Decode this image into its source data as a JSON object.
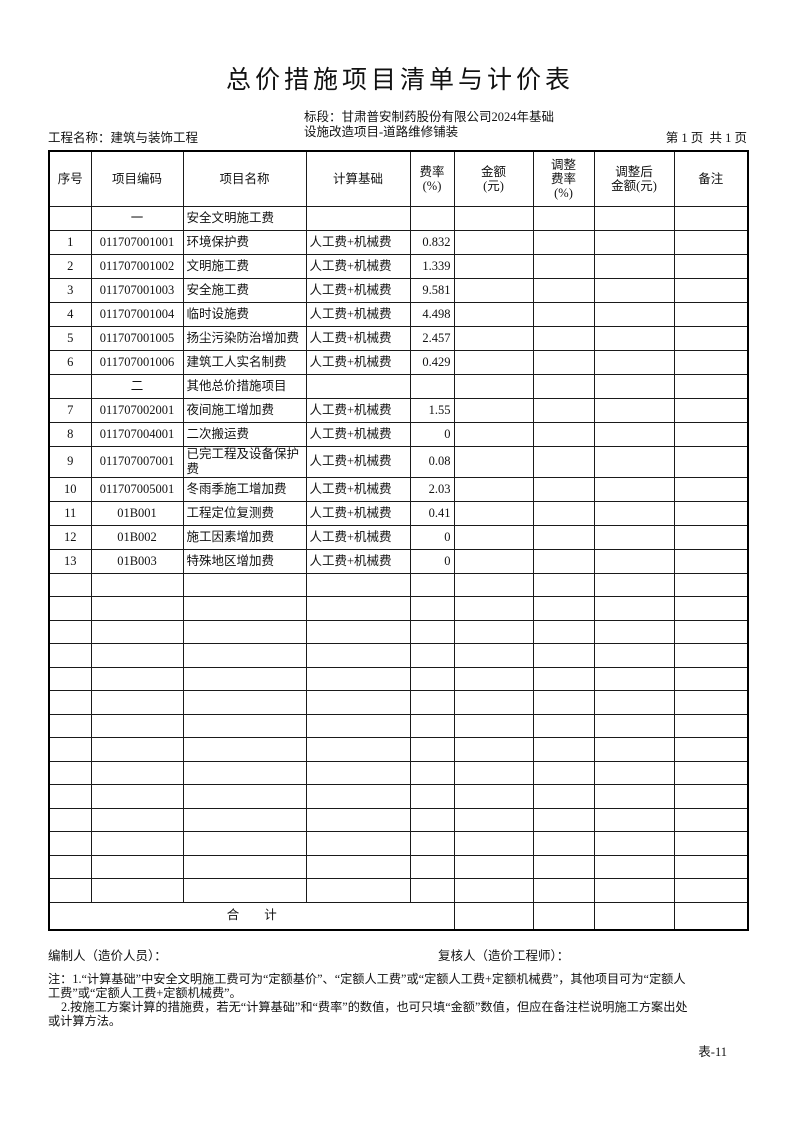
{
  "page": {
    "title": "总价措施项目清单与计价表",
    "project_label": "工程名称：建筑与装饰工程",
    "section_label_line1": "标段：甘肃普安制药股份有限公司2024年基础",
    "section_label_line2": "设施改造项目-道路维修铺装",
    "page_info": "第 1 页  共 1 页",
    "form_code": "表-11"
  },
  "table": {
    "headers": [
      "序号",
      "项目编码",
      "项目名称",
      "计算基础",
      "费率\n(%)",
      "金额\n(元)",
      "调整\n费率\n(%)",
      "调整后\n金额(元)",
      "备注"
    ],
    "rows": [
      {
        "section": true,
        "code": "一",
        "name": "安全文明施工费"
      },
      {
        "no": "1",
        "code": "011707001001",
        "name": "环境保护费",
        "basis": "人工费+机械费",
        "rate": "0.832"
      },
      {
        "no": "2",
        "code": "011707001002",
        "name": "文明施工费",
        "basis": "人工费+机械费",
        "rate": "1.339"
      },
      {
        "no": "3",
        "code": "011707001003",
        "name": "安全施工费",
        "basis": "人工费+机械费",
        "rate": "9.581"
      },
      {
        "no": "4",
        "code": "011707001004",
        "name": "临时设施费",
        "basis": "人工费+机械费",
        "rate": "4.498"
      },
      {
        "no": "5",
        "code": "011707001005",
        "name": "扬尘污染防治增加费",
        "basis": "人工费+机械费",
        "rate": "2.457"
      },
      {
        "no": "6",
        "code": "011707001006",
        "name": "建筑工人实名制费",
        "basis": "人工费+机械费",
        "rate": "0.429"
      },
      {
        "section": true,
        "code": "二",
        "name": "其他总价措施项目"
      },
      {
        "no": "7",
        "code": "011707002001",
        "name": "夜间施工增加费",
        "basis": "人工费+机械费",
        "rate": "1.55"
      },
      {
        "no": "8",
        "code": "011707004001",
        "name": "二次搬运费",
        "basis": "人工费+机械费",
        "rate": "0"
      },
      {
        "no": "9",
        "code": "011707007001",
        "name": "已完工程及设备保护费",
        "basis": "人工费+机械费",
        "rate": "0.08"
      },
      {
        "no": "10",
        "code": "011707005001",
        "name": "冬雨季施工增加费",
        "basis": "人工费+机械费",
        "rate": "2.03"
      },
      {
        "no": "11",
        "code": "01B001",
        "name": "工程定位复测费",
        "basis": "人工费+机械费",
        "rate": "0.41"
      },
      {
        "no": "12",
        "code": "01B002",
        "name": "施工因素增加费",
        "basis": "人工费+机械费",
        "rate": "0"
      },
      {
        "no": "13",
        "code": "01B003",
        "name": "特殊地区增加费",
        "basis": "人工费+机械费",
        "rate": "0"
      }
    ],
    "empty_row_count": 14,
    "total_label": "合　　计"
  },
  "footer": {
    "compiler_label": "编制人（造价人员）：",
    "reviewer_label": "复核人（造价工程师）：",
    "note_lines": [
      "注：1.“计算基础”中安全文明施工费可为“定额基价”、“定额人工费”或“定额人工费+定额机械费”，其他项目可为“定额人",
      "工费”或“定额人工费+定额机械费”。",
      "2.按施工方案计算的措施费，若无“计算基础”和“费率”的数值，也可只填“金额”数值，但应在备注栏说明施工方案出处",
      "或计算方法。"
    ]
  }
}
